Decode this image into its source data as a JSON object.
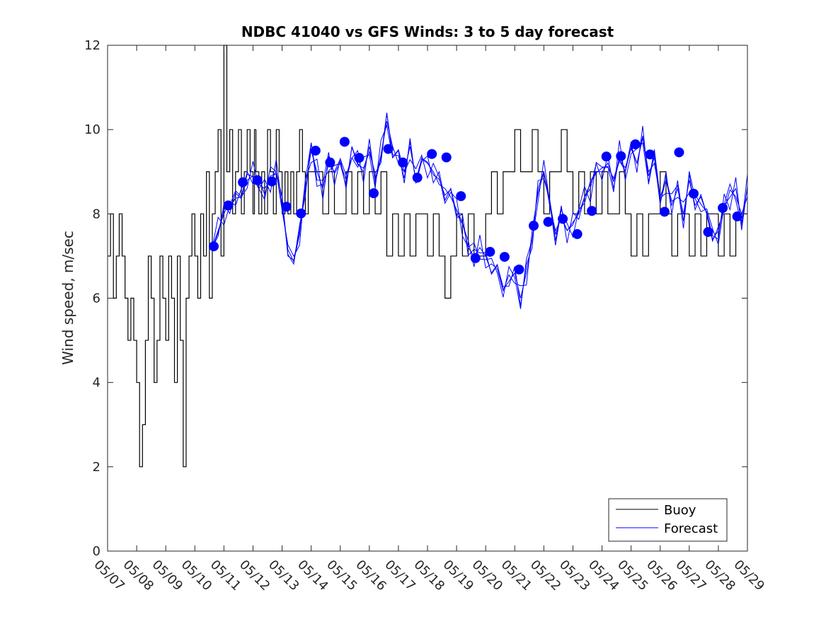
{
  "chart_data": {
    "type": "line",
    "title": "NDBC 41040 vs GFS Winds: 3 to 5 day forecast",
    "xlabel": "",
    "ylabel": "Wind speed, m/sec",
    "xlim": [
      "05/07",
      "05/29"
    ],
    "ylim": [
      0,
      12
    ],
    "yticks": [
      0,
      2,
      4,
      6,
      8,
      10,
      12
    ],
    "xtick_labels": [
      "05/07",
      "05/08",
      "05/09",
      "05/10",
      "05/11",
      "05/12",
      "05/13",
      "05/14",
      "05/15",
      "05/16",
      "05/17",
      "05/18",
      "05/19",
      "05/20",
      "05/21",
      "05/22",
      "05/23",
      "05/24",
      "05/25",
      "05/26",
      "05/27",
      "05/28",
      "05/29"
    ],
    "grid": false,
    "legend_position": "bottom-right",
    "colors": {
      "buoy": "#000000",
      "forecast": "#0000ff",
      "markers": "#0000ff"
    },
    "series": [
      {
        "name": "Buoy",
        "style": "line",
        "x_days_from_0507": [
          0,
          0.1,
          0.2,
          0.3,
          0.4,
          0.5,
          0.6,
          0.7,
          0.8,
          0.9,
          1,
          1.1,
          1.2,
          1.3,
          1.4,
          1.5,
          1.6,
          1.7,
          1.8,
          1.9,
          2,
          2.1,
          2.2,
          2.3,
          2.4,
          2.5,
          2.6,
          2.7,
          2.8,
          2.9,
          3,
          3.1,
          3.2,
          3.3,
          3.4,
          3.5,
          3.6,
          3.7,
          3.8,
          3.9,
          4,
          4.1,
          4.2,
          4.3,
          4.4,
          4.5,
          4.6,
          4.7,
          4.8,
          4.9,
          5,
          5.05,
          5.1,
          5.2,
          5.3,
          5.4,
          5.5,
          5.6,
          5.7,
          5.8,
          5.9,
          6,
          6.1,
          6.2,
          6.3,
          6.4,
          6.5,
          6.6,
          6.7,
          6.8,
          6.9,
          7,
          7.2,
          7.4,
          7.6,
          7.8,
          8,
          8.2,
          8.4,
          8.6,
          8.8,
          9,
          9.2,
          9.4,
          9.6,
          9.8,
          10,
          10.2,
          10.4,
          10.6,
          10.8,
          11,
          11.2,
          11.4,
          11.6,
          11.8,
          12,
          12.2,
          12.4,
          12.6,
          12.8,
          13,
          13.2,
          13.4,
          13.6,
          13.8,
          14,
          14.2,
          14.4,
          14.6,
          14.8,
          15,
          15.2,
          15.4,
          15.6,
          15.8,
          16,
          16.2,
          16.4,
          16.6,
          16.8,
          17,
          17.2,
          17.4,
          17.6,
          17.8,
          18,
          18.2,
          18.4,
          18.6,
          18.8,
          19,
          19.2,
          19.4,
          19.6,
          19.8,
          20,
          20.2,
          20.4,
          20.6,
          20.8,
          21,
          21.2,
          21.4,
          21.6,
          21.8,
          22
        ],
        "y": [
          7,
          8,
          6,
          7,
          8,
          7,
          6,
          5,
          6,
          5,
          4,
          2,
          3,
          5,
          7,
          6,
          4,
          5,
          7,
          6,
          5,
          7,
          6,
          4,
          7,
          5,
          2,
          6,
          7,
          8,
          7,
          6,
          8,
          7,
          9,
          6,
          8,
          9,
          10,
          7,
          12,
          9,
          10,
          8,
          9,
          10,
          8,
          9,
          10,
          9,
          8,
          10,
          9,
          8,
          9,
          8,
          10,
          9,
          8,
          10,
          9,
          8,
          9,
          8,
          9,
          8,
          9,
          10,
          9,
          8,
          9,
          9,
          9,
          8,
          9,
          8,
          8,
          9,
          8,
          9,
          8,
          9,
          8,
          9,
          7,
          8,
          7,
          8,
          7,
          8,
          8,
          7,
          8,
          7,
          6,
          7,
          8,
          7,
          8,
          7,
          7,
          8,
          9,
          8,
          9,
          9,
          10,
          9,
          9,
          10,
          9,
          8,
          9,
          9,
          10,
          9,
          8,
          9,
          8,
          9,
          8,
          9,
          8,
          8,
          9,
          8,
          7,
          8,
          7,
          8,
          8,
          9,
          8,
          7,
          8,
          8,
          7,
          8,
          7,
          8,
          8,
          7,
          8,
          7,
          8,
          8,
          8
        ]
      },
      {
        "name": "Forecast",
        "style": "line",
        "x_days_from_0507": [
          3.6,
          3.8,
          4.0,
          4.2,
          4.4,
          4.6,
          4.8,
          5.0,
          5.2,
          5.4,
          5.6,
          5.8,
          6.0,
          6.2,
          6.4,
          6.6,
          6.8,
          7.0,
          7.2,
          7.4,
          7.6,
          7.8,
          8.0,
          8.2,
          8.4,
          8.6,
          8.8,
          9.0,
          9.2,
          9.4,
          9.6,
          9.8,
          10.0,
          10.2,
          10.4,
          10.6,
          10.8,
          11.0,
          11.2,
          11.4,
          11.6,
          11.8,
          12.0,
          12.2,
          12.4,
          12.6,
          12.8,
          13.0,
          13.2,
          13.4,
          13.6,
          13.8,
          14.0,
          14.2,
          14.4,
          14.6,
          14.8,
          15.0,
          15.2,
          15.4,
          15.6,
          15.8,
          16.0,
          16.2,
          16.4,
          16.6,
          16.8,
          17.0,
          17.2,
          17.4,
          17.6,
          17.8,
          18.0,
          18.2,
          18.4,
          18.6,
          18.8,
          19.0,
          19.2,
          19.4,
          19.6,
          19.8,
          20.0,
          20.2,
          20.4,
          20.6,
          20.8,
          21.0,
          21.2,
          21.4,
          21.6,
          21.8,
          22.0
        ],
        "y": [
          7.2,
          7.6,
          8.0,
          8.3,
          8.2,
          8.6,
          8.8,
          8.9,
          8.7,
          8.6,
          8.8,
          9.0,
          8.4,
          7.0,
          6.9,
          7.6,
          8.6,
          9.5,
          9.0,
          8.6,
          9.2,
          9.0,
          9.3,
          8.6,
          9.6,
          9.2,
          9.0,
          9.6,
          8.8,
          9.4,
          10.2,
          9.6,
          9.2,
          9.0,
          9.6,
          8.8,
          9.3,
          9.2,
          9.0,
          8.7,
          8.6,
          8.4,
          8.1,
          7.8,
          7.2,
          7.0,
          7.2,
          7.0,
          6.6,
          6.8,
          6.2,
          6.4,
          6.6,
          6.0,
          6.6,
          7.4,
          8.6,
          9.0,
          8.2,
          7.6,
          7.9,
          7.6,
          7.8,
          8.0,
          8.4,
          8.6,
          9.2,
          8.8,
          9.4,
          8.6,
          9.4,
          9.0,
          9.6,
          9.2,
          9.8,
          9.0,
          9.2,
          8.4,
          8.8,
          8.2,
          8.6,
          8.0,
          8.8,
          8.2,
          8.4,
          8.0,
          7.4,
          7.6,
          8.2,
          8.4,
          8.6,
          7.8,
          8.6
        ]
      },
      {
        "name": "",
        "style": "markers",
        "x_days_from_0507": [
          3.65,
          4.15,
          4.65,
          5.15,
          5.65,
          6.15,
          6.65,
          7.15,
          7.65,
          8.15,
          8.65,
          9.15,
          9.65,
          10.15,
          10.65,
          11.15,
          11.65,
          12.15,
          12.65,
          13.15,
          13.65,
          14.15,
          14.65,
          15.15,
          15.65,
          16.15,
          16.65,
          17.15,
          17.65,
          18.15,
          18.65,
          19.15,
          19.65,
          20.15,
          20.65,
          21.15,
          21.65
        ],
        "y": [
          7.23,
          8.2,
          8.75,
          8.8,
          8.77,
          8.17,
          8.01,
          9.5,
          9.22,
          9.71,
          9.33,
          8.49,
          9.54,
          9.22,
          8.86,
          9.42,
          9.34,
          8.42,
          6.95,
          7.1,
          6.98,
          6.68,
          7.72,
          7.81,
          7.88,
          7.52,
          8.07,
          9.36,
          9.37,
          9.65,
          9.41,
          8.05,
          9.46,
          8.48,
          7.57,
          8.14,
          7.94
        ]
      }
    ]
  }
}
